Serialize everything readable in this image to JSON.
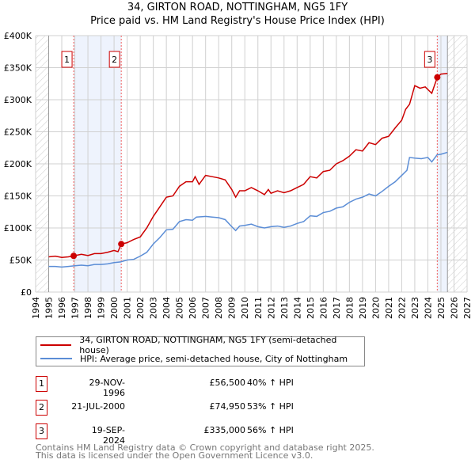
{
  "title": "34, GIRTON ROAD, NOTTINGHAM, NG5 1FY",
  "subtitle": "Price paid vs. HM Land Registry's House Price Index (HPI)",
  "chart_data": {
    "type": "line",
    "xlim": [
      1994,
      2027
    ],
    "ylim": [
      0,
      400000
    ],
    "x_ticks": [
      "1994",
      "1995",
      "1996",
      "1997",
      "1998",
      "1999",
      "2000",
      "2001",
      "2002",
      "2003",
      "2004",
      "2005",
      "2006",
      "2007",
      "2008",
      "2009",
      "2010",
      "2011",
      "2012",
      "2013",
      "2014",
      "2015",
      "2016",
      "2017",
      "2018",
      "2019",
      "2020",
      "2021",
      "2022",
      "2023",
      "2024",
      "2025",
      "2026",
      "2027"
    ],
    "y_ticks": [
      {
        "v": 0,
        "label": "£0"
      },
      {
        "v": 50000,
        "label": "£50K"
      },
      {
        "v": 100000,
        "label": "£100K"
      },
      {
        "v": 150000,
        "label": "£150K"
      },
      {
        "v": 200000,
        "label": "£200K"
      },
      {
        "v": 250000,
        "label": "£250K"
      },
      {
        "v": 300000,
        "label": "£300K"
      },
      {
        "v": 350000,
        "label": "£350K"
      },
      {
        "v": 400000,
        "label": "£400K"
      }
    ],
    "grid": true,
    "series": [
      {
        "name": "34, GIRTON ROAD, NOTTINGHAM, NG5 1FY (semi-detached house)",
        "color": "#cc0000",
        "x": [
          1995,
          1995.5,
          1996,
          1996.5,
          1996.91,
          1997.5,
          1998,
          1998.5,
          1999,
          1999.5,
          2000,
          2000.3,
          2000.55,
          2001,
          2001.5,
          2002,
          2002.5,
          2003,
          2003.5,
          2004,
          2004.5,
          2005,
          2005.5,
          2006,
          2006.2,
          2006.5,
          2007,
          2007.5,
          2008,
          2008.5,
          2009,
          2009.3,
          2009.6,
          2010,
          2010.5,
          2011,
          2011.5,
          2011.8,
          2012,
          2012.5,
          2013,
          2013.5,
          2014,
          2014.5,
          2015,
          2015.5,
          2016,
          2016.5,
          2017,
          2017.5,
          2018,
          2018.5,
          2019,
          2019.5,
          2020,
          2020.5,
          2021,
          2021.5,
          2022,
          2022.3,
          2022.6,
          2023,
          2023.4,
          2023.8,
          2024.3,
          2024.72,
          2025,
          2025.5
        ],
        "y": [
          55000,
          56000,
          54000,
          55000,
          56500,
          59000,
          57000,
          60000,
          60000,
          62000,
          65000,
          63000,
          74950,
          77000,
          82000,
          86000,
          100000,
          118000,
          133000,
          148000,
          150000,
          165000,
          172000,
          172000,
          180000,
          168000,
          182000,
          180000,
          178000,
          175000,
          160000,
          148000,
          158000,
          158000,
          163000,
          158000,
          152000,
          160000,
          154000,
          158000,
          155000,
          158000,
          163000,
          168000,
          180000,
          178000,
          188000,
          190000,
          200000,
          205000,
          212000,
          222000,
          220000,
          233000,
          230000,
          240000,
          243000,
          256000,
          268000,
          285000,
          293000,
          322000,
          318000,
          320000,
          310000,
          335000,
          340000,
          341000
        ]
      },
      {
        "name": "HPI: Average price, semi-detached house, City of Nottingham",
        "color": "#5b8dd6",
        "x": [
          1995,
          1995.5,
          1996,
          1996.5,
          1997,
          1997.5,
          1998,
          1998.5,
          1999,
          1999.5,
          2000,
          2000.5,
          2001,
          2001.5,
          2002,
          2002.5,
          2003,
          2003.5,
          2004,
          2004.5,
          2005,
          2005.5,
          2006,
          2006.3,
          2007,
          2007.5,
          2008,
          2008.5,
          2009,
          2009.3,
          2009.6,
          2010,
          2010.5,
          2011,
          2011.5,
          2012,
          2012.5,
          2013,
          2013.5,
          2014,
          2014.5,
          2015,
          2015.5,
          2016,
          2016.5,
          2017,
          2017.5,
          2018,
          2018.5,
          2019,
          2019.5,
          2020,
          2020.5,
          2021,
          2021.5,
          2022,
          2022.4,
          2022.6,
          2023,
          2023.5,
          2024,
          2024.3,
          2024.7,
          2025,
          2025.5
        ],
        "y": [
          40000,
          40000,
          39000,
          40000,
          41000,
          42000,
          41000,
          43000,
          43000,
          44000,
          46000,
          47000,
          50000,
          51000,
          56000,
          62000,
          75000,
          85000,
          97000,
          98000,
          110000,
          113000,
          112000,
          117000,
          118000,
          117000,
          116000,
          113000,
          102000,
          96000,
          103000,
          104000,
          106000,
          102000,
          100000,
          102000,
          103000,
          101000,
          103000,
          107000,
          110000,
          119000,
          118000,
          124000,
          126000,
          131000,
          133000,
          140000,
          145000,
          148000,
          153000,
          150000,
          157000,
          165000,
          172000,
          182000,
          190000,
          210000,
          209000,
          208000,
          210000,
          203000,
          214000,
          215000,
          218000
        ]
      }
    ],
    "sales": [
      {
        "label": "1",
        "x": 1996.91,
        "y": 56500
      },
      {
        "label": "2",
        "x": 2000.55,
        "y": 74950
      },
      {
        "label": "3",
        "x": 2024.72,
        "y": 335000
      }
    ],
    "legend_position": "below"
  },
  "legend": [
    "34, GIRTON ROAD, NOTTINGHAM, NG5 1FY (semi-detached house)",
    "HPI: Average price, semi-detached house, City of Nottingham"
  ],
  "transactions": [
    {
      "num": "1",
      "date": "29-NOV-1996",
      "price": "£56,500",
      "hpi": "40% ↑ HPI"
    },
    {
      "num": "2",
      "date": "21-JUL-2000",
      "price": "£74,950",
      "hpi": "53% ↑ HPI"
    },
    {
      "num": "3",
      "date": "19-SEP-2024",
      "price": "£335,000",
      "hpi": "56% ↑ HPI"
    }
  ],
  "footer": [
    "Contains HM Land Registry data © Crown copyright and database right 2025.",
    "This data is licensed under the Open Government Licence v3.0."
  ]
}
